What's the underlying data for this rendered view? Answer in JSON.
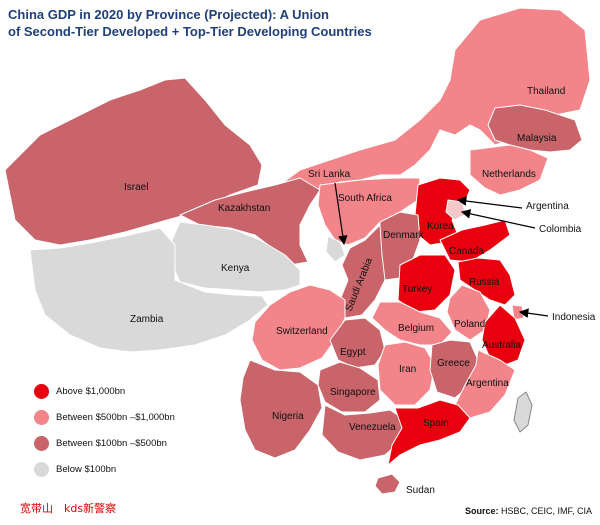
{
  "title": {
    "line1": "China GDP in 2020 by Province (Projected): A Union",
    "line2": "of Second-Tier Developed + Top-Tier Developing Countries"
  },
  "colors": {
    "above_1000": "#e8000f",
    "between_500_1000": "#f2848a",
    "between_100_500": "#c8646a",
    "below_100": "#d9d9d9",
    "title": "#1f3f78",
    "watermark": "#e00000"
  },
  "legend": [
    {
      "label": "Above $1,000bn",
      "color": "#e8000f"
    },
    {
      "label": "Between $500bn –$1,000bn",
      "color": "#f2848a"
    },
    {
      "label": "Between $100bn –$500bn",
      "color": "#c8646a"
    },
    {
      "label": "Below $100bn",
      "color": "#d9d9d9"
    }
  ],
  "map_labels": {
    "thailand": "Thailand",
    "malaysia": "Malaysia",
    "netherlands": "Netherlands",
    "israel": "Israel",
    "sri_lanka": "Sri Lanka",
    "south_africa": "South Africa",
    "kazakhstan": "Kazakhstan",
    "argentina_callout": "Argentina",
    "korea": "Korea",
    "colombia": "Colombia",
    "denmark": "Denmark",
    "canada": "Canada",
    "kenya": "Kenya",
    "saudi_arabia": "Saudi Arabia",
    "russia": "Russia",
    "turkey": "Turkey",
    "indonesia": "Indonesia",
    "zambia": "Zambia",
    "switzerland": "Switzerland",
    "belgium": "Belgium",
    "poland": "Poland",
    "egypt": "Egypt",
    "australia": "Australia",
    "iran": "Iran",
    "greece": "Greece",
    "argentina": "Argentina",
    "singapore": "Singapore",
    "nigeria": "Nigeria",
    "venezuela": "Venezuela",
    "spain": "Spain",
    "sudan": "Sudan"
  },
  "watermark": "宽带山　kds新警察",
  "source": {
    "label": "Source:",
    "text": "HSBC, CEIC, IMF, CIA"
  }
}
